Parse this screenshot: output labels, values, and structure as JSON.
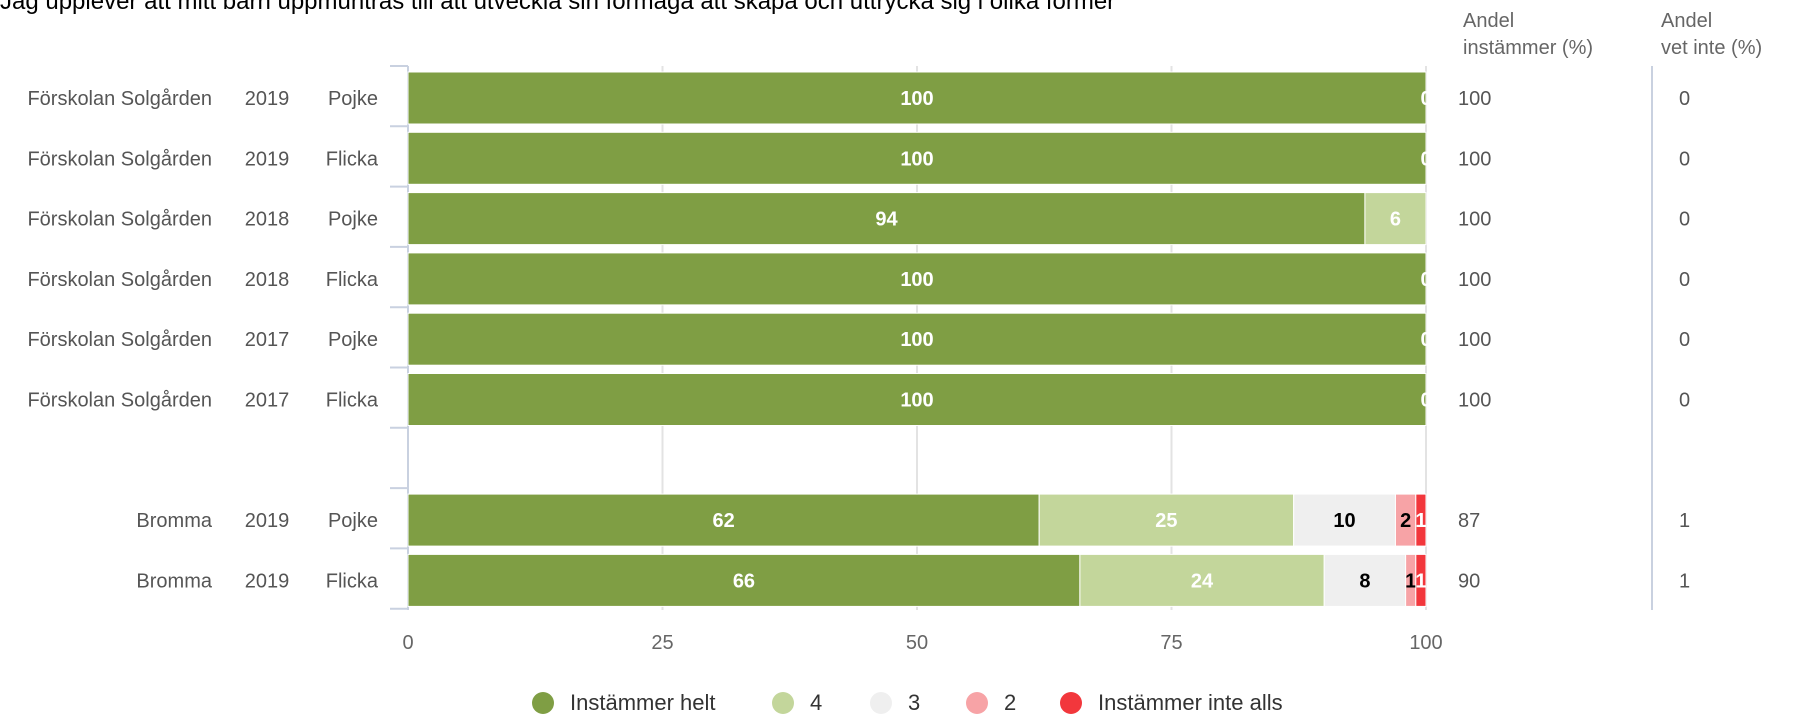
{
  "title": "Jag upplever att mitt barn uppmuntras till att utveckla sin förmåga att skapa och uttrycka sig i olika former",
  "column_headers": {
    "agree": [
      "Andel",
      "instämmer (%)"
    ],
    "dont_know": [
      "Andel",
      "vet inte (%)"
    ]
  },
  "chart_data": {
    "type": "bar",
    "orientation": "horizontal",
    "stacked": true,
    "title": "Jag upplever att mitt barn uppmuntras till att utveckla sin förmåga att skapa och uttrycka sig i olika former",
    "xlim": [
      0,
      100
    ],
    "x_ticks": [
      0,
      25,
      50,
      75,
      100
    ],
    "grid": true,
    "legend_position": "bottom",
    "categories": [
      [
        "Förskolan Solgården",
        "2019",
        "Pojke"
      ],
      [
        "Förskolan Solgården",
        "2019",
        "Flicka"
      ],
      [
        "Förskolan Solgården",
        "2018",
        "Pojke"
      ],
      [
        "Förskolan Solgården",
        "2018",
        "Flicka"
      ],
      [
        "Förskolan Solgården",
        "2017",
        "Pojke"
      ],
      [
        "Förskolan Solgården",
        "2017",
        "Flicka"
      ],
      [
        "",
        "",
        ""
      ],
      [
        "Bromma",
        "2019",
        "Pojke"
      ],
      [
        "Bromma",
        "2019",
        "Flicka"
      ]
    ],
    "series": [
      {
        "name": "Instämmer helt",
        "color": "#7f9e44",
        "label_color": "#ffffff",
        "values": [
          100,
          100,
          94,
          100,
          100,
          100,
          null,
          62,
          66
        ]
      },
      {
        "name": "4",
        "color": "#c3d69b",
        "label_color": "#ffffff",
        "values": [
          0,
          0,
          6,
          0,
          0,
          0,
          null,
          25,
          24
        ]
      },
      {
        "name": "3",
        "color": "#efefef",
        "label_color": "#000000",
        "values": [
          0,
          0,
          0,
          0,
          0,
          0,
          null,
          10,
          8
        ]
      },
      {
        "name": "2",
        "color": "#f7a3a6",
        "label_color": "#000000",
        "values": [
          0,
          0,
          0,
          0,
          0,
          0,
          null,
          2,
          1
        ]
      },
      {
        "name": "Instämmer inte alls",
        "color": "#f2373c",
        "label_color": "#ffffff",
        "values": [
          0,
          0,
          0,
          0,
          0,
          0,
          null,
          1,
          1
        ]
      }
    ],
    "andel_instammer": [
      "100",
      "100",
      "100",
      "100",
      "100",
      "100",
      "",
      "87",
      "90"
    ],
    "andel_vet_inte": [
      "0",
      "0",
      "0",
      "0",
      "0",
      "0",
      "",
      "1",
      "1"
    ]
  }
}
